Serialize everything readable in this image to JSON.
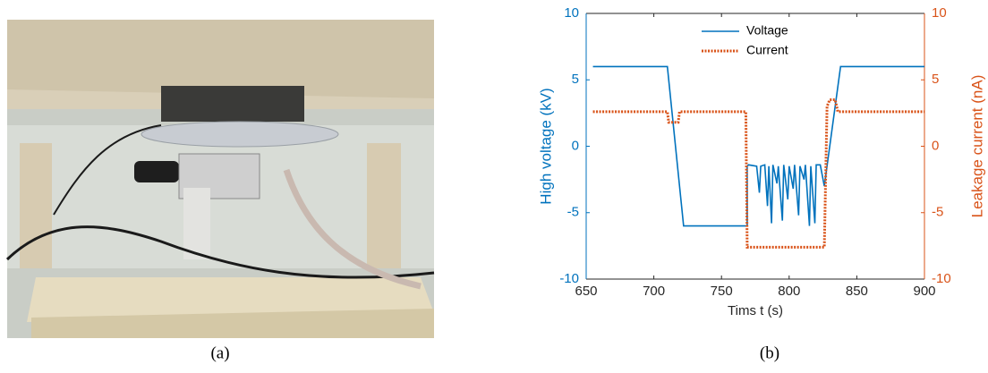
{
  "chart_data": {
    "type": "line",
    "xlabel": "Tims t (s)",
    "ylabel": "High voltage (kV)",
    "y2label": "Leakage current (nA)",
    "xlim": [
      650,
      900
    ],
    "xticks": [
      650,
      700,
      750,
      800,
      850,
      900
    ],
    "ylim": [
      -10,
      10
    ],
    "yticks": [
      -10,
      -5,
      0,
      5,
      10
    ],
    "y2lim": [
      -10,
      10
    ],
    "y2ticks": [
      -10,
      -5,
      0,
      5,
      10
    ],
    "legend": "upper center",
    "series": [
      {
        "name": "Voltage",
        "color": "#0072BD",
        "axis": "y",
        "dash": "solid",
        "x": [
          655,
          710,
          722,
          769,
          769,
          770,
          776,
          778,
          779,
          782,
          784,
          785,
          787,
          788,
          791,
          792,
          795,
          796,
          799,
          800,
          803,
          804,
          807,
          808,
          811,
          812,
          815,
          816,
          819,
          820,
          823,
          826,
          838,
          900
        ],
        "values": [
          6,
          6,
          -6,
          -6,
          -1.5,
          -1.4,
          -1.5,
          -3.5,
          -1.5,
          -1.4,
          -4.5,
          -1.5,
          -5.8,
          -1.4,
          -2.8,
          -1.5,
          -5.6,
          -1.4,
          -4,
          -1.5,
          -3.2,
          -1.4,
          -5.2,
          -1.5,
          -2.5,
          -1.4,
          -6,
          -1.5,
          -5.8,
          -1.4,
          -1.4,
          -3,
          6,
          6
        ]
      },
      {
        "name": "Current",
        "color": "#D95319",
        "axis": "y2",
        "dash": "dotted",
        "x": [
          655,
          710,
          711,
          718,
          719,
          768,
          769,
          826,
          828,
          830,
          834,
          836,
          900
        ],
        "values": [
          2.6,
          2.6,
          1.8,
          1.8,
          2.6,
          2.6,
          -7.6,
          -7.6,
          3,
          3.5,
          3.5,
          2.6,
          2.6
        ]
      }
    ]
  },
  "captions": [
    "(a)",
    "(b)"
  ]
}
